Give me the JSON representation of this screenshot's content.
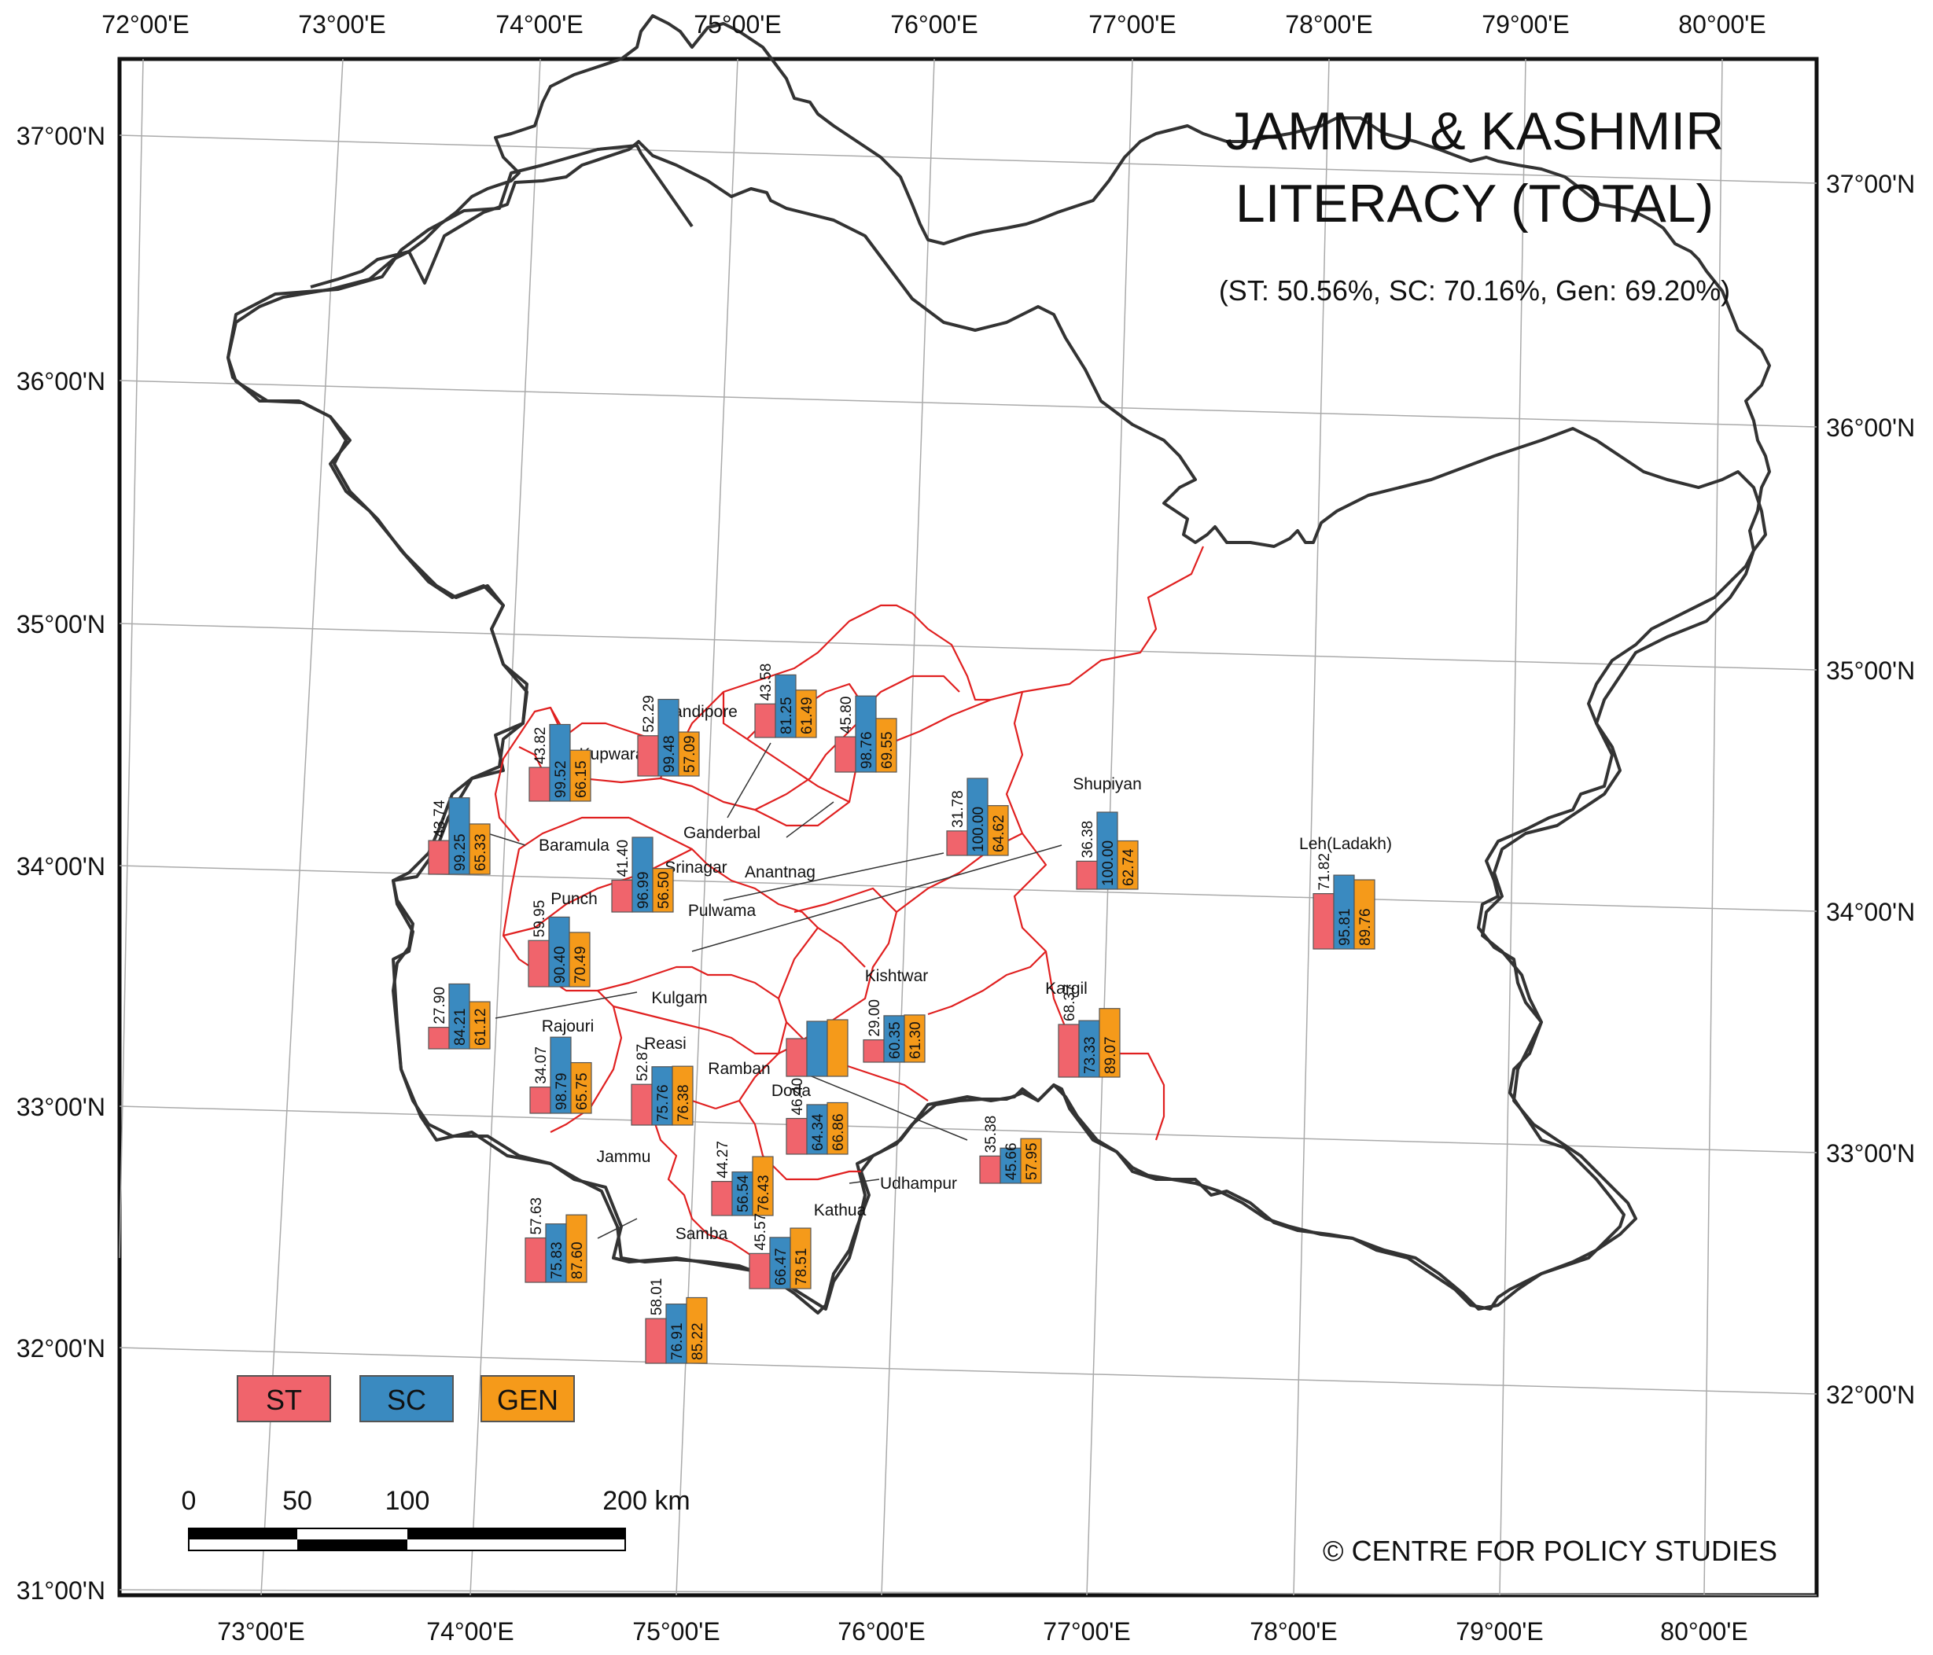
{
  "map": {
    "title_line1": "JAMMU & KASHMIR",
    "title_line2": "LITERACY (TOTAL)",
    "subtitle": "(ST: 50.56%, SC: 70.16%, Gen: 69.20%)",
    "credit": "© CENTRE FOR POLICY STUDIES",
    "colors": {
      "st": "#f0646c",
      "sc": "#3a8ac0",
      "gen": "#f59a1a",
      "district_border": "#e02020",
      "state_border": "#333333",
      "grid": "#aaaaaa"
    }
  },
  "axes": {
    "top_lon": [
      "72°00'E",
      "73°00'E",
      "74°00'E",
      "75°00'E",
      "76°00'E",
      "77°00'E",
      "78°00'E",
      "79°00'E",
      "80°00'E"
    ],
    "bottom_lon": [
      "73°00'E",
      "74°00'E",
      "75°00'E",
      "76°00'E",
      "77°00'E",
      "78°00'E",
      "79°00'E",
      "80°00'E"
    ],
    "left_lat": [
      "37°00'N",
      "36°00'N",
      "35°00'N",
      "34°00'N",
      "33°00'N",
      "32°00'N",
      "31°00'N"
    ],
    "right_lat": [
      "37°00'N",
      "36°00'N",
      "35°00'N",
      "34°00'N",
      "33°00'N",
      "32°00'N"
    ]
  },
  "legend": {
    "st": "ST",
    "sc": "SC",
    "gen": "GEN"
  },
  "scale": {
    "labels": [
      "0",
      "50",
      "100",
      "200 km"
    ]
  },
  "districts": [
    {
      "name": "Kupwara",
      "st": "43.82",
      "sc": "99.52",
      "gen": "66.15"
    },
    {
      "name": "Bandipore",
      "st": "52.29",
      "sc": "99.48",
      "gen": "57.09"
    },
    {
      "name": "Ganderbal",
      "st": "43.58",
      "sc": "81.25",
      "gen": "61.49"
    },
    {
      "name": "Baramula",
      "st": "43.74",
      "sc": "99.25",
      "gen": "65.33"
    },
    {
      "name": "Srinagar",
      "st": "45.80",
      "sc": "98.76",
      "gen": "69.55"
    },
    {
      "name": "Anantnag",
      "st": "31.78",
      "sc": "100.00",
      "gen": "64.62"
    },
    {
      "name": "Shupiyan",
      "st": "36.38",
      "sc": "100.00",
      "gen": "62.74"
    },
    {
      "name": "Leh(Ladakh)",
      "st": "71.82",
      "sc": "95.81",
      "gen": "89.76"
    },
    {
      "name": "Punch",
      "st": "59.95",
      "sc": "90.40",
      "gen": "70.49"
    },
    {
      "name": "Pulwama",
      "st": "41.40",
      "sc": "96.99",
      "gen": "56.50"
    },
    {
      "name": "Kulgam",
      "st": "27.90",
      "sc": "84.21",
      "gen": "61.12"
    },
    {
      "name": "Kishtwar",
      "st": "29.00",
      "sc": "60.35",
      "gen": "61.30"
    },
    {
      "name": "Kargil",
      "st": "68.37",
      "sc": "73.33",
      "gen": "89.07"
    },
    {
      "name": "Ramban",
      "st": "34.07",
      "sc": "98.79",
      "gen": "65.75"
    },
    {
      "name": "Rajouri",
      "st": "52.87",
      "sc": "75.76",
      "gen": "76.38"
    },
    {
      "name": "Reasi",
      "st": "",
      "sc": "",
      "gen": ""
    },
    {
      "name": "Doda",
      "st": "46.40",
      "sc": "64.34",
      "gen": "66.86"
    },
    {
      "name": "Udhampur",
      "st": "35.38",
      "sc": "45.66",
      "gen": "57.95"
    },
    {
      "name": "Jammu",
      "st": "57.63",
      "sc": "75.83",
      "gen": "87.60"
    },
    {
      "name": "Kathua",
      "st": "44.27",
      "sc": "56.54",
      "gen": "76.43"
    },
    {
      "name": "Samba",
      "st": "45.57",
      "sc": "66.47",
      "gen": "78.51"
    },
    {
      "name": "",
      "st": "58.01",
      "sc": "76.91",
      "gen": "85.22"
    }
  ]
}
